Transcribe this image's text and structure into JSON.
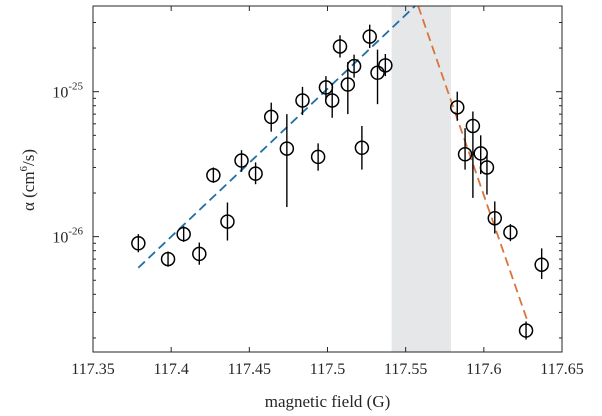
{
  "chart_data": {
    "type": "scatter",
    "xlabel": "magnetic field (G)",
    "ylabel_parts": [
      "α  (cm",
      "6",
      "/s)"
    ],
    "ylabel": "α (cm6/s)",
    "xlim": [
      117.35,
      117.65
    ],
    "ylim": [
      1.6e-27,
      3.9e-25
    ],
    "yscale": "log",
    "x_ticks": [
      117.35,
      117.4,
      117.45,
      117.5,
      117.55,
      117.6,
      117.65
    ],
    "x_tick_labels": [
      "117.35",
      "117.4",
      "117.45",
      "117.5",
      "117.55",
      "117.6",
      "117.65"
    ],
    "y_ticks": [
      {
        "value": 1e-26,
        "base": "10",
        "exponent": "-26"
      },
      {
        "value": 1e-25,
        "base": "10",
        "exponent": "-25"
      }
    ],
    "grid": false,
    "shaded_region": {
      "x": [
        117.541,
        117.579
      ],
      "color": "#e6e7e9"
    },
    "points": [
      {
        "x": 117.379,
        "y": 9e-27,
        "lo": 7.8e-27,
        "hi": 1.04e-26
      },
      {
        "x": 117.398,
        "y": 7e-27,
        "lo": 6.2e-27,
        "hi": 7.9e-27
      },
      {
        "x": 117.408,
        "y": 1.04e-26,
        "lo": 9.2e-27,
        "hi": 1.18e-26
      },
      {
        "x": 117.418,
        "y": 7.6e-27,
        "lo": 6.4e-27,
        "hi": 9.1e-27
      },
      {
        "x": 117.427,
        "y": 2.65e-26,
        "lo": 2.35e-26,
        "hi": 3e-26
      },
      {
        "x": 117.436,
        "y": 1.27e-26,
        "lo": 9.4e-27,
        "hi": 1.72e-26
      },
      {
        "x": 117.445,
        "y": 3.35e-26,
        "lo": 2.8e-26,
        "hi": 3.95e-26
      },
      {
        "x": 117.454,
        "y": 2.72e-26,
        "lo": 2.3e-26,
        "hi": 3.25e-26
      },
      {
        "x": 117.464,
        "y": 6.7e-26,
        "lo": 5.3e-26,
        "hi": 8.4e-26
      },
      {
        "x": 117.474,
        "y": 4.05e-26,
        "lo": 1.6e-26,
        "hi": 7e-26
      },
      {
        "x": 117.484,
        "y": 8.7e-26,
        "lo": 6.9e-26,
        "hi": 1.08e-25
      },
      {
        "x": 117.494,
        "y": 3.55e-26,
        "lo": 2.85e-26,
        "hi": 4.4e-26
      },
      {
        "x": 117.499,
        "y": 1.07e-25,
        "lo": 8.8e-26,
        "hi": 1.28e-25
      },
      {
        "x": 117.503,
        "y": 8.7e-26,
        "lo": 6.6e-26,
        "hi": 1.14e-25
      },
      {
        "x": 117.508,
        "y": 2.05e-25,
        "lo": 1.72e-25,
        "hi": 2.45e-25
      },
      {
        "x": 117.513,
        "y": 1.12e-25,
        "lo": 7e-26,
        "hi": 1.6e-25
      },
      {
        "x": 117.517,
        "y": 1.5e-25,
        "lo": 1.25e-25,
        "hi": 1.8e-25
      },
      {
        "x": 117.522,
        "y": 4.1e-26,
        "lo": 2.9e-26,
        "hi": 5.8e-26
      },
      {
        "x": 117.527,
        "y": 2.4e-25,
        "lo": 2e-25,
        "hi": 2.9e-25
      },
      {
        "x": 117.532,
        "y": 1.35e-25,
        "lo": 8.2e-26,
        "hi": 1.95e-25
      },
      {
        "x": 117.537,
        "y": 1.52e-25,
        "lo": 1.28e-25,
        "hi": 1.82e-25
      },
      {
        "x": 117.583,
        "y": 7.8e-26,
        "lo": 6.3e-26,
        "hi": 1e-25
      },
      {
        "x": 117.588,
        "y": 3.7e-26,
        "lo": 2.9e-26,
        "hi": 5.6e-26
      },
      {
        "x": 117.593,
        "y": 5.8e-26,
        "lo": 1.85e-26,
        "hi": 7.3e-26
      },
      {
        "x": 117.598,
        "y": 3.75e-26,
        "lo": 2.7e-26,
        "hi": 5e-26
      },
      {
        "x": 117.602,
        "y": 3e-26,
        "lo": 1.95e-26,
        "hi": 3.65e-26
      },
      {
        "x": 117.607,
        "y": 1.34e-26,
        "lo": 1.05e-26,
        "hi": 1.75e-26
      },
      {
        "x": 117.617,
        "y": 1.07e-26,
        "lo": 9.3e-27,
        "hi": 1.22e-26
      },
      {
        "x": 117.627,
        "y": 2.25e-27,
        "lo": 1.95e-27,
        "hi": 2.6e-27
      },
      {
        "x": 117.637,
        "y": 6.4e-27,
        "lo": 5.1e-27,
        "hi": 8.3e-27
      }
    ],
    "fit_lines": [
      {
        "color": "#1f6fa6",
        "x": [
          117.379,
          117.556
        ],
        "y": [
          6.1e-27,
          3.9e-25
        ]
      },
      {
        "color": "#d9753a",
        "x": [
          117.558,
          117.628
        ],
        "y": [
          3.9e-25,
          2.6e-27
        ]
      }
    ],
    "marker_color": "#000000"
  }
}
